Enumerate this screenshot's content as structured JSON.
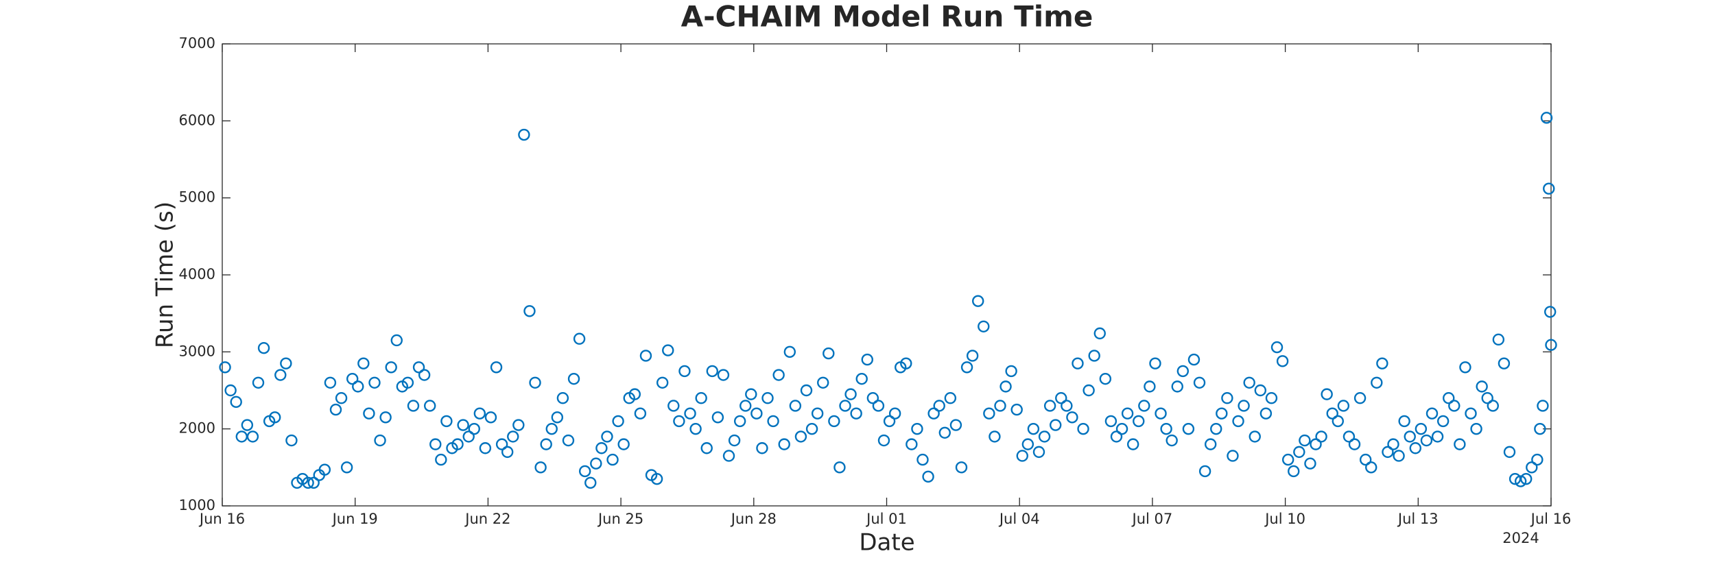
{
  "chart_data": {
    "type": "scatter",
    "title": "A-CHAIM Model Run Time",
    "xlabel": "Date",
    "ylabel": "Run Time (s)",
    "x_year_label": "2024",
    "color": "#0072bd",
    "grid": false,
    "xlim": [
      0,
      30
    ],
    "ylim": [
      1000,
      7000
    ],
    "xticks": [
      {
        "value": 0,
        "label": "Jun 16"
      },
      {
        "value": 3,
        "label": "Jun 19"
      },
      {
        "value": 6,
        "label": "Jun 22"
      },
      {
        "value": 9,
        "label": "Jun 25"
      },
      {
        "value": 12,
        "label": "Jun 28"
      },
      {
        "value": 15,
        "label": "Jul 01"
      },
      {
        "value": 18,
        "label": "Jul 04"
      },
      {
        "value": 21,
        "label": "Jul 07"
      },
      {
        "value": 24,
        "label": "Jul 10"
      },
      {
        "value": 27,
        "label": "Jul 13"
      },
      {
        "value": 30,
        "label": "Jul 16"
      }
    ],
    "yticks": [
      1000,
      2000,
      3000,
      4000,
      5000,
      6000,
      7000
    ],
    "x": [
      0.063,
      0.188,
      0.313,
      0.438,
      0.563,
      0.688,
      0.813,
      0.938,
      1.063,
      1.188,
      1.313,
      1.438,
      1.563,
      1.688,
      1.813,
      1.938,
      2.063,
      2.188,
      2.313,
      2.438,
      2.563,
      2.688,
      2.813,
      2.938,
      3.063,
      3.188,
      3.313,
      3.438,
      3.563,
      3.688,
      3.813,
      3.938,
      4.063,
      4.188,
      4.313,
      4.438,
      4.563,
      4.688,
      4.813,
      4.938,
      5.063,
      5.188,
      5.313,
      5.438,
      5.563,
      5.688,
      5.813,
      5.938,
      6.063,
      6.188,
      6.313,
      6.438,
      6.563,
      6.688,
      6.813,
      6.938,
      7.063,
      7.188,
      7.313,
      7.438,
      7.563,
      7.688,
      7.813,
      7.938,
      8.063,
      8.188,
      8.313,
      8.438,
      8.563,
      8.688,
      8.813,
      8.938,
      9.063,
      9.188,
      9.313,
      9.438,
      9.563,
      9.688,
      9.813,
      9.938,
      10.063,
      10.188,
      10.313,
      10.438,
      10.563,
      10.688,
      10.813,
      10.938,
      11.063,
      11.188,
      11.313,
      11.438,
      11.563,
      11.688,
      11.813,
      11.938,
      12.063,
      12.188,
      12.313,
      12.438,
      12.563,
      12.688,
      12.813,
      12.938,
      13.063,
      13.188,
      13.313,
      13.438,
      13.563,
      13.688,
      13.813,
      13.938,
      14.063,
      14.188,
      14.313,
      14.438,
      14.563,
      14.688,
      14.813,
      14.938,
      15.063,
      15.188,
      15.313,
      15.438,
      15.563,
      15.688,
      15.813,
      15.938,
      16.063,
      16.188,
      16.313,
      16.438,
      16.563,
      16.688,
      16.813,
      16.938,
      17.063,
      17.188,
      17.313,
      17.438,
      17.563,
      17.688,
      17.813,
      17.938,
      18.063,
      18.188,
      18.313,
      18.438,
      18.563,
      18.688,
      18.813,
      18.938,
      19.063,
      19.188,
      19.313,
      19.438,
      19.563,
      19.688,
      19.813,
      19.938,
      20.063,
      20.188,
      20.313,
      20.438,
      20.563,
      20.688,
      20.813,
      20.938,
      21.063,
      21.188,
      21.313,
      21.438,
      21.563,
      21.688,
      21.813,
      21.938,
      22.063,
      22.188,
      22.313,
      22.438,
      22.563,
      22.688,
      22.813,
      22.938,
      23.063,
      23.188,
      23.313,
      23.438,
      23.563,
      23.688,
      23.813,
      23.938,
      24.063,
      24.188,
      24.313,
      24.438,
      24.563,
      24.688,
      24.813,
      24.938,
      25.063,
      25.188,
      25.313,
      25.438,
      25.563,
      25.688,
      25.813,
      25.938,
      26.063,
      26.188,
      26.313,
      26.438,
      26.563,
      26.688,
      26.813,
      26.938,
      27.063,
      27.188,
      27.313,
      27.438,
      27.563,
      27.688,
      27.813,
      27.938,
      28.063,
      28.188,
      28.313,
      28.438,
      28.563,
      28.688,
      28.813,
      28.938,
      29.063,
      29.188,
      29.313,
      29.438,
      29.563,
      29.688,
      29.75,
      29.813,
      29.9,
      29.95,
      29.98,
      30.0
    ],
    "values": [
      2800,
      2500,
      2350,
      1900,
      2050,
      1900,
      2600,
      3050,
      2100,
      2150,
      2700,
      2850,
      1850,
      1300,
      1350,
      1300,
      1300,
      1400,
      1470,
      2600,
      2250,
      2400,
      1500,
      2650,
      2550,
      2850,
      2200,
      2600,
      1850,
      2150,
      2800,
      3150,
      2550,
      2600,
      2300,
      2800,
      2700,
      2300,
      1800,
      1600,
      2100,
      1750,
      1800,
      2050,
      1900,
      2000,
      2200,
      1750,
      2150,
      2800,
      1800,
      1700,
      1900,
      2050,
      5820,
      3530,
      2600,
      1500,
      1800,
      2000,
      2150,
      2400,
      1850,
      2650,
      3170,
      1450,
      1300,
      1550,
      1750,
      1900,
      1600,
      2100,
      1800,
      2400,
      2450,
      2200,
      2950,
      1400,
      1350,
      2600,
      3020,
      2300,
      2100,
      2750,
      2200,
      2000,
      2400,
      1750,
      2750,
      2150,
      2700,
      1650,
      1850,
      2100,
      2300,
      2450,
      2200,
      1750,
      2400,
      2100,
      2700,
      1800,
      3000,
      2300,
      1900,
      2500,
      2000,
      2200,
      2600,
      2980,
      2100,
      1500,
      2300,
      2450,
      2200,
      2650,
      2900,
      2400,
      2300,
      1850,
      2100,
      2200,
      2800,
      2850,
      1800,
      2000,
      1600,
      1380,
      2200,
      2300,
      1950,
      2400,
      2050,
      1500,
      2800,
      2950,
      3660,
      3330,
      2200,
      1900,
      2300,
      2550,
      2750,
      2250,
      1650,
      1800,
      2000,
      1700,
      1900,
      2300,
      2050,
      2400,
      2300,
      2150,
      2850,
      2000,
      2500,
      2950,
      3240,
      2650,
      2100,
      1900,
      2000,
      2200,
      1800,
      2100,
      2300,
      2550,
      2850,
      2200,
      2000,
      1850,
      2550,
      2750,
      2000,
      2900,
      2600,
      1450,
      1800,
      2000,
      2200,
      2400,
      1650,
      2100,
      2300,
      2600,
      1900,
      2500,
      2200,
      2400,
      3060,
      2880,
      1600,
      1450,
      1700,
      1850,
      1550,
      1800,
      1900,
      2450,
      2200,
      2100,
      2300,
      1900,
      1800,
      2400,
      1600,
      1500,
      2600,
      2850,
      1700,
      1800,
      1650,
      2100,
      1900,
      1750,
      2000,
      1850,
      2200,
      1900,
      2100,
      2400,
      2300,
      1800,
      2800,
      2200,
      2000,
      2550,
      2400,
      2300,
      3160,
      2850,
      1700,
      1350,
      1320,
      1350,
      1500,
      1600,
      2000,
      2300,
      6040,
      5120,
      3520,
      3090
    ]
  }
}
